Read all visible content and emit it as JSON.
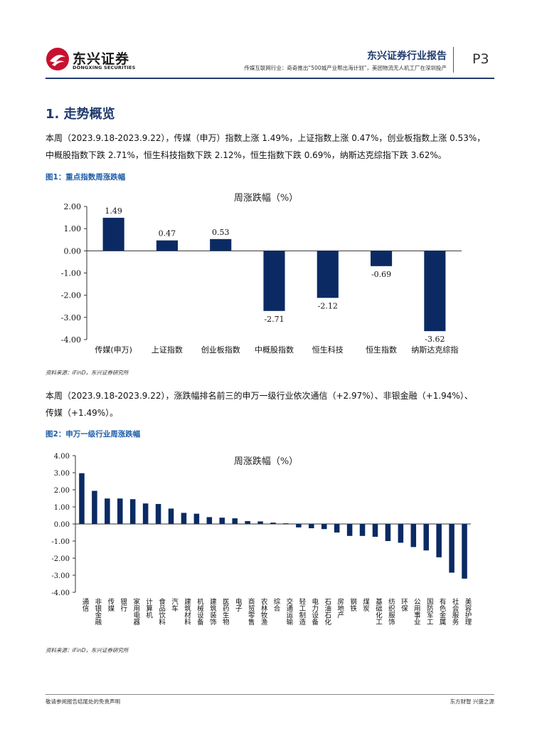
{
  "header": {
    "brand_cn": "东兴证券",
    "brand_en": "DONGXING SECURITIES",
    "report_title": "东兴证券行业报告",
    "report_subtitle": "传媒互联网行业：奇奇推出“500城产业帮出海计划”，美团物流无人机工厂在深圳投产",
    "page": "P3",
    "colors": {
      "brand_blue": "#1f3a6e",
      "logo_red": "#c8102e",
      "bar": "#0b2a63",
      "caption_blue": "#1f5fa8"
    }
  },
  "section": {
    "title": "1. 走势概览"
  },
  "para1": {
    "line1": "本周（2023.9.18-2023.9.22），传媒（申万）指数上涨 1.49%，上证指数上涨 0.47%，创业板指数上涨 0.53%，",
    "line2": "中概股指数下跌 2.71%，恒生科技指数下跌 2.12%，恒生指数下跌 0.69%，纳斯达克综指下跌 3.62%。"
  },
  "figure1": {
    "caption": "图1：重点指数周涨跌幅",
    "source": "资料来源：iFinD，东兴证券研究所"
  },
  "para2": {
    "line1": "本周（2023.9.18-2023.9.22），涨跌幅排名前三的申万一级行业依次通信（+2.97%）、非银金融（+1.94%）、",
    "line2": "传媒（+1.49%）。"
  },
  "figure2": {
    "caption": "图2：申万一级行业周涨跌幅",
    "source": "资料来源：iFinD，东兴证券研究所"
  },
  "chart_data": [
    {
      "type": "bar",
      "title": "周涨跌幅（%）",
      "categories": [
        "传媒(申万)",
        "上证指数",
        "创业板指数",
        "中概股指数",
        "恒生科技",
        "恒生指数",
        "纳斯达克综指"
      ],
      "values": [
        1.49,
        0.47,
        0.53,
        -2.71,
        -2.12,
        -0.69,
        -3.62
      ],
      "data_labels": [
        "1.49",
        "0.47",
        "0.53",
        "-2.71",
        "-2.12",
        "-0.69",
        "-3.62"
      ],
      "ylim": [
        -4,
        2
      ],
      "yticks": [
        "2.00",
        "1.00",
        "0.00",
        "-1.00",
        "-2.00",
        "-3.00",
        "-4.00"
      ],
      "xlabel": "",
      "ylabel": "",
      "grid": false,
      "legend": "none"
    },
    {
      "type": "bar",
      "title": "周涨跌幅（%）",
      "categories": [
        "通信",
        "非银金融",
        "传媒",
        "银行",
        "家用电器",
        "计算机",
        "食品饮料",
        "汽车",
        "建筑材料",
        "机械设备",
        "建筑装饰",
        "医药生物",
        "电子",
        "商贸零售",
        "农林牧渔",
        "综合",
        "交通运输",
        "轻工制造",
        "电力设备",
        "石油石化",
        "房地产",
        "钢铁",
        "煤炭",
        "基础化工",
        "纺织服饰",
        "环保",
        "公用事业",
        "国防军工",
        "有色金属",
        "社会服务",
        "美容护理"
      ],
      "values": [
        2.97,
        1.94,
        1.49,
        1.49,
        1.45,
        1.2,
        1.17,
        0.9,
        0.65,
        0.6,
        0.4,
        0.37,
        0.33,
        0.17,
        0.15,
        0.08,
        0.04,
        -0.2,
        -0.25,
        -0.3,
        -0.5,
        -0.7,
        -0.7,
        -0.75,
        -1.0,
        -1.1,
        -1.35,
        -1.55,
        -1.95,
        -2.85,
        -3.2
      ],
      "ylim": [
        -4,
        4
      ],
      "yticks": [
        "4.00",
        "3.00",
        "2.00",
        "1.00",
        "0.00",
        "-1.00",
        "-2.00",
        "-3.00",
        "-4.00"
      ],
      "xlabel": "",
      "ylabel": "",
      "grid": false,
      "legend": "none"
    }
  ],
  "footer": {
    "left": "敬请参阅报告结尾处的免责声明",
    "right": "东方财智 兴盛之源"
  }
}
